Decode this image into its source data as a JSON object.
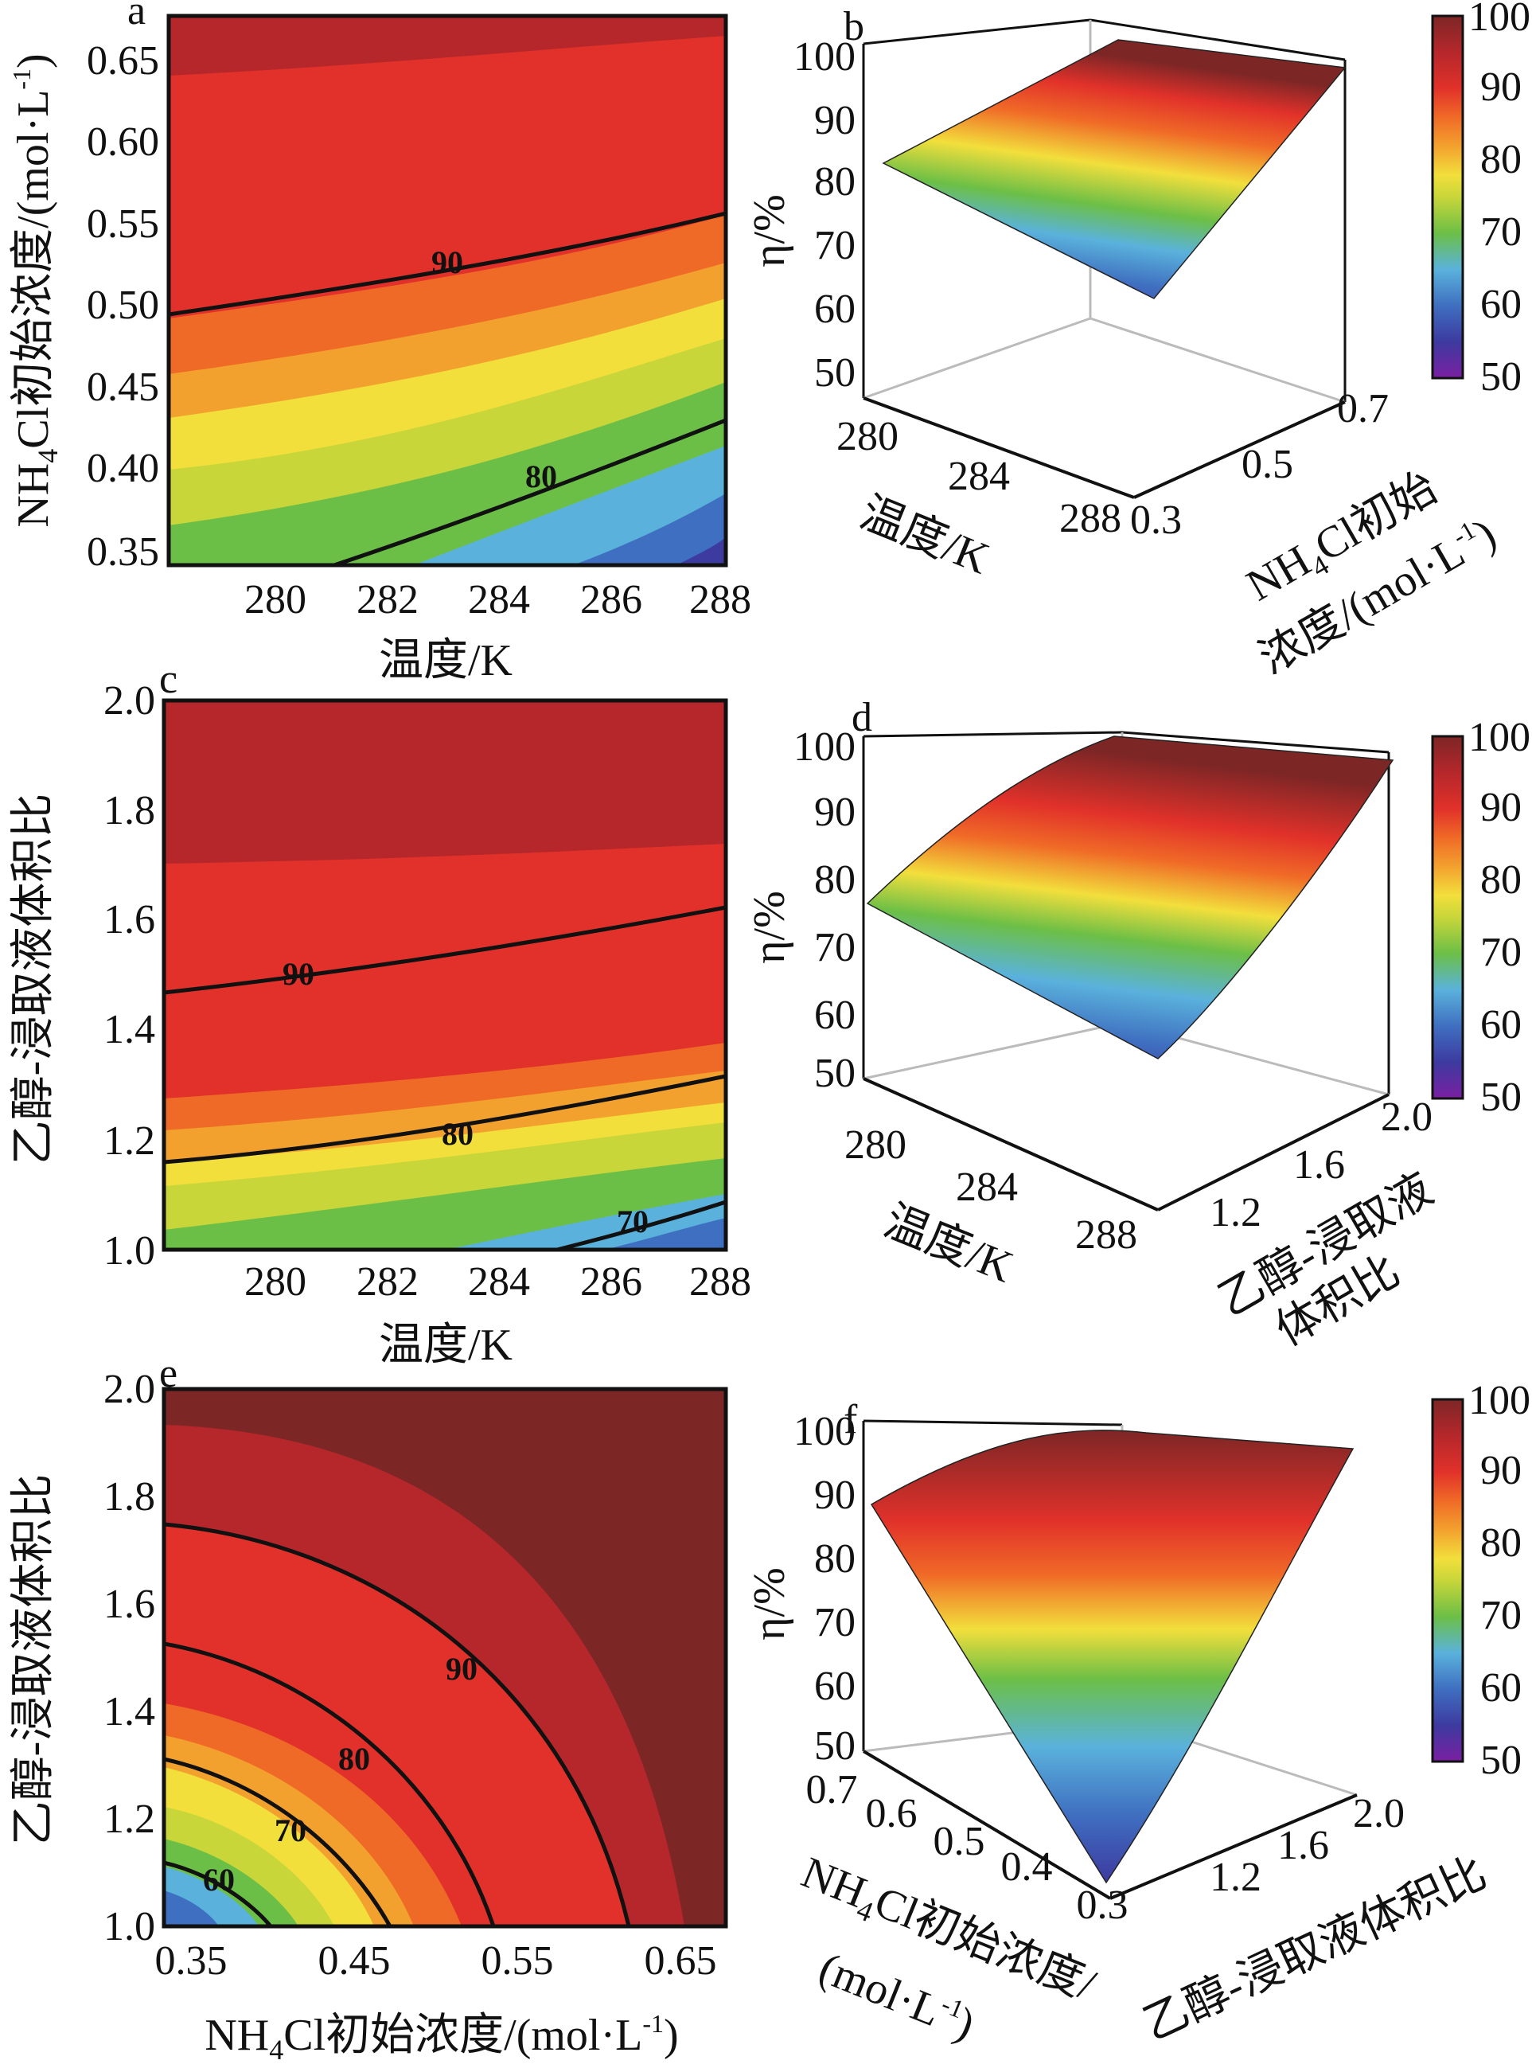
{
  "chart_data": [
    {
      "panel": "a",
      "type": "contour",
      "xlabel": "温度/K",
      "ylabel_prefix": "NH",
      "ylabel_sub": "4",
      "ylabel_mid": "Cl初始浓度/(mol·L",
      "ylabel_sup": "-1",
      "ylabel_end": ")",
      "x_ticks": [
        "280",
        "282",
        "284",
        "286",
        "288"
      ],
      "y_ticks": [
        "0.35",
        "0.40",
        "0.45",
        "0.50",
        "0.55",
        "0.60",
        "0.65"
      ],
      "xlim": [
        278.3,
        288.2
      ],
      "ylim": [
        0.34,
        0.675
      ],
      "contour_labels": [
        "90",
        "80"
      ]
    },
    {
      "panel": "b",
      "type": "surface3d",
      "zlabel": "η/%",
      "xlabel": "温度/K",
      "ylabel_line1_prefix": "NH",
      "ylabel_line1_sub": "4",
      "ylabel_line1_rest": "Cl初始",
      "ylabel_line2": "浓度/(mol·L",
      "ylabel_line2_sup": "-1",
      "ylabel_line2_end": ")",
      "z_ticks": [
        "50",
        "60",
        "70",
        "80",
        "90",
        "100"
      ],
      "x_ticks": [
        "280",
        "284",
        "288"
      ],
      "y_ticks": [
        "0.3",
        "0.5",
        "0.7"
      ],
      "corner_values": [
        84,
        97,
        64,
        87
      ]
    },
    {
      "panel": "c",
      "type": "contour",
      "xlabel": "温度/K",
      "ylabel": "乙醇-浸取液体积比",
      "x_ticks": [
        "280",
        "282",
        "284",
        "286",
        "288"
      ],
      "y_ticks": [
        "1.0",
        "1.2",
        "1.4",
        "1.6",
        "1.8",
        "2.0"
      ],
      "xlim": [
        278.3,
        288.2
      ],
      "ylim": [
        1.0,
        2.0
      ],
      "contour_labels": [
        "90",
        "80",
        "70"
      ]
    },
    {
      "panel": "d",
      "type": "surface3d",
      "zlabel": "η/%",
      "xlabel": "温度/K",
      "ylabel_line1": "乙醇-浸取液",
      "ylabel_line2": "体积比",
      "z_ticks": [
        "50",
        "60",
        "70",
        "80",
        "90",
        "100"
      ],
      "x_ticks": [
        "280",
        "284",
        "288"
      ],
      "y_ticks": [
        "1.2",
        "1.6",
        "2.0"
      ],
      "corner_values": [
        76,
        98,
        55,
        96
      ]
    },
    {
      "panel": "e",
      "type": "contour",
      "xlabel_prefix": "NH",
      "xlabel_sub": "4",
      "xlabel_mid": "Cl初始浓度/(mol·L",
      "xlabel_sup": "-1",
      "xlabel_end": ")",
      "ylabel": "乙醇-浸取液体积比",
      "x_ticks": [
        "0.35",
        "0.45",
        "0.55",
        "0.65"
      ],
      "y_ticks": [
        "1.0",
        "1.2",
        "1.4",
        "1.6",
        "1.8",
        "2.0"
      ],
      "xlim": [
        0.34,
        0.685
      ],
      "ylim": [
        1.0,
        2.0
      ],
      "contour_labels": [
        "90",
        "80",
        "70",
        "60"
      ]
    },
    {
      "panel": "f",
      "type": "surface3d",
      "zlabel": "η/%",
      "xlabel_line1_prefix": "NH",
      "xlabel_line1_sub": "4",
      "xlabel_line1_rest": "Cl初始浓度/",
      "xlabel_line2": "(mol·L",
      "xlabel_line2_sup": "-1",
      "xlabel_line2_end": ")",
      "ylabel": "乙醇-浸取液体积比",
      "z_ticks": [
        "50",
        "60",
        "70",
        "80",
        "90",
        "100"
      ],
      "x_ticks": [
        "0.7",
        "0.6",
        "0.5",
        "0.4",
        "0.3"
      ],
      "y_ticks": [
        "1.2",
        "1.6",
        "2.0"
      ],
      "corner_values": [
        92,
        98,
        52,
        97
      ]
    }
  ],
  "colorbar": {
    "ticks": [
      "50",
      "60",
      "70",
      "80",
      "90",
      "100"
    ],
    "range": [
      50,
      100
    ]
  },
  "colors": {
    "c50": "#7a1fa2",
    "c55": "#3d3aa0",
    "c60": "#3f6fc0",
    "c65": "#5ab2dc",
    "c70": "#6cbf46",
    "c75": "#c8d63a",
    "c78": "#f2df3c",
    "c82": "#f3a12e",
    "c86": "#f06a27",
    "c90": "#e1312a",
    "c95": "#b5272b",
    "c100": "#7d2626"
  }
}
